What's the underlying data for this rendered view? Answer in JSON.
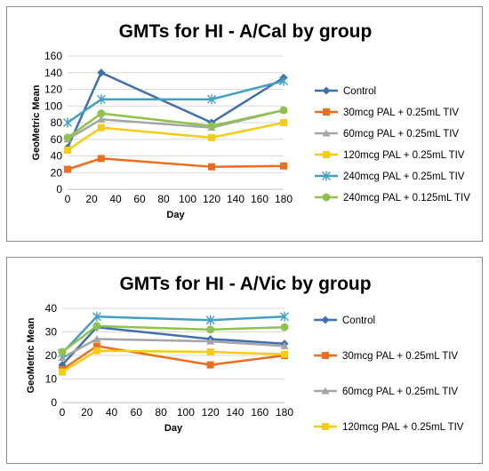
{
  "chart_data": [
    {
      "type": "line",
      "title": "GMTs for HI - A/Cal by group",
      "xlabel": "Day",
      "ylabel": "GeoMetric Mean",
      "x": [
        0,
        28,
        120,
        180
      ],
      "xlim": [
        0,
        180
      ],
      "xticks": [
        "0",
        "20",
        "40",
        "60",
        "80",
        "100",
        "120",
        "140",
        "160",
        "180"
      ],
      "ylim": [
        0,
        160
      ],
      "yticks": [
        "0",
        "20",
        "40",
        "60",
        "80",
        "100",
        "120",
        "140",
        "160"
      ],
      "grid": true,
      "legend_position": "right",
      "series": [
        {
          "name": "Control",
          "color": "#3f6fad",
          "marker": "diamond",
          "values": [
            50,
            140,
            80,
            134
          ]
        },
        {
          "name": "30mcg PAL + 0.25mL TIV",
          "color": "#ed6d1c",
          "marker": "square",
          "values": [
            24,
            37,
            27,
            28
          ]
        },
        {
          "name": "60mcg PAL + 0.25mL TIV",
          "color": "#a5a5a5",
          "marker": "triangle",
          "values": [
            60,
            84,
            74,
            95
          ]
        },
        {
          "name": "120mcg PAL + 0.25mL TIV",
          "color": "#f6cc12",
          "marker": "square",
          "values": [
            47,
            74,
            62,
            80
          ]
        },
        {
          "name": "240mcg PAL + 0.25mL TIV",
          "color": "#43a0c2",
          "marker": "star",
          "values": [
            80,
            108,
            108,
            130
          ]
        },
        {
          "name": "240mcg PAL + 0.125mL TIV",
          "color": "#8fc24c",
          "marker": "circle",
          "values": [
            62,
            91,
            76,
            95
          ]
        }
      ]
    },
    {
      "type": "line",
      "title": "GMTs for HI - A/Vic by group",
      "xlabel": "Day",
      "ylabel": "GeoMetric Mean",
      "x": [
        0,
        28,
        120,
        180
      ],
      "xlim": [
        0,
        180
      ],
      "xticks": [
        "0",
        "20",
        "40",
        "60",
        "80",
        "100",
        "120",
        "140",
        "160",
        "180"
      ],
      "ylim": [
        0,
        40
      ],
      "yticks": [
        "0",
        "10",
        "20",
        "30",
        "40"
      ],
      "grid": true,
      "legend_position": "right",
      "series": [
        {
          "name": "Control",
          "color": "#3f6fad",
          "marker": "diamond",
          "values": [
            16,
            32,
            27,
            25
          ]
        },
        {
          "name": "30mcg PAL + 0.25mL TIV",
          "color": "#ed6d1c",
          "marker": "square",
          "values": [
            14,
            24,
            16,
            20
          ]
        },
        {
          "name": "60mcg PAL + 0.25mL TIV",
          "color": "#a5a5a5",
          "marker": "triangle",
          "values": [
            19,
            27,
            26,
            24
          ]
        },
        {
          "name": "120mcg PAL + 0.25mL TIV",
          "color": "#f6cc12",
          "marker": "square",
          "values": [
            13,
            22,
            21.5,
            20.5
          ]
        },
        {
          "name": "",
          "color": "#43a0c2",
          "marker": "star",
          "values": [
            21,
            36.5,
            35,
            36.5
          ]
        },
        {
          "name": "",
          "color": "#8fc24c",
          "marker": "circle",
          "values": [
            21.5,
            32.5,
            31,
            32
          ]
        }
      ]
    }
  ]
}
